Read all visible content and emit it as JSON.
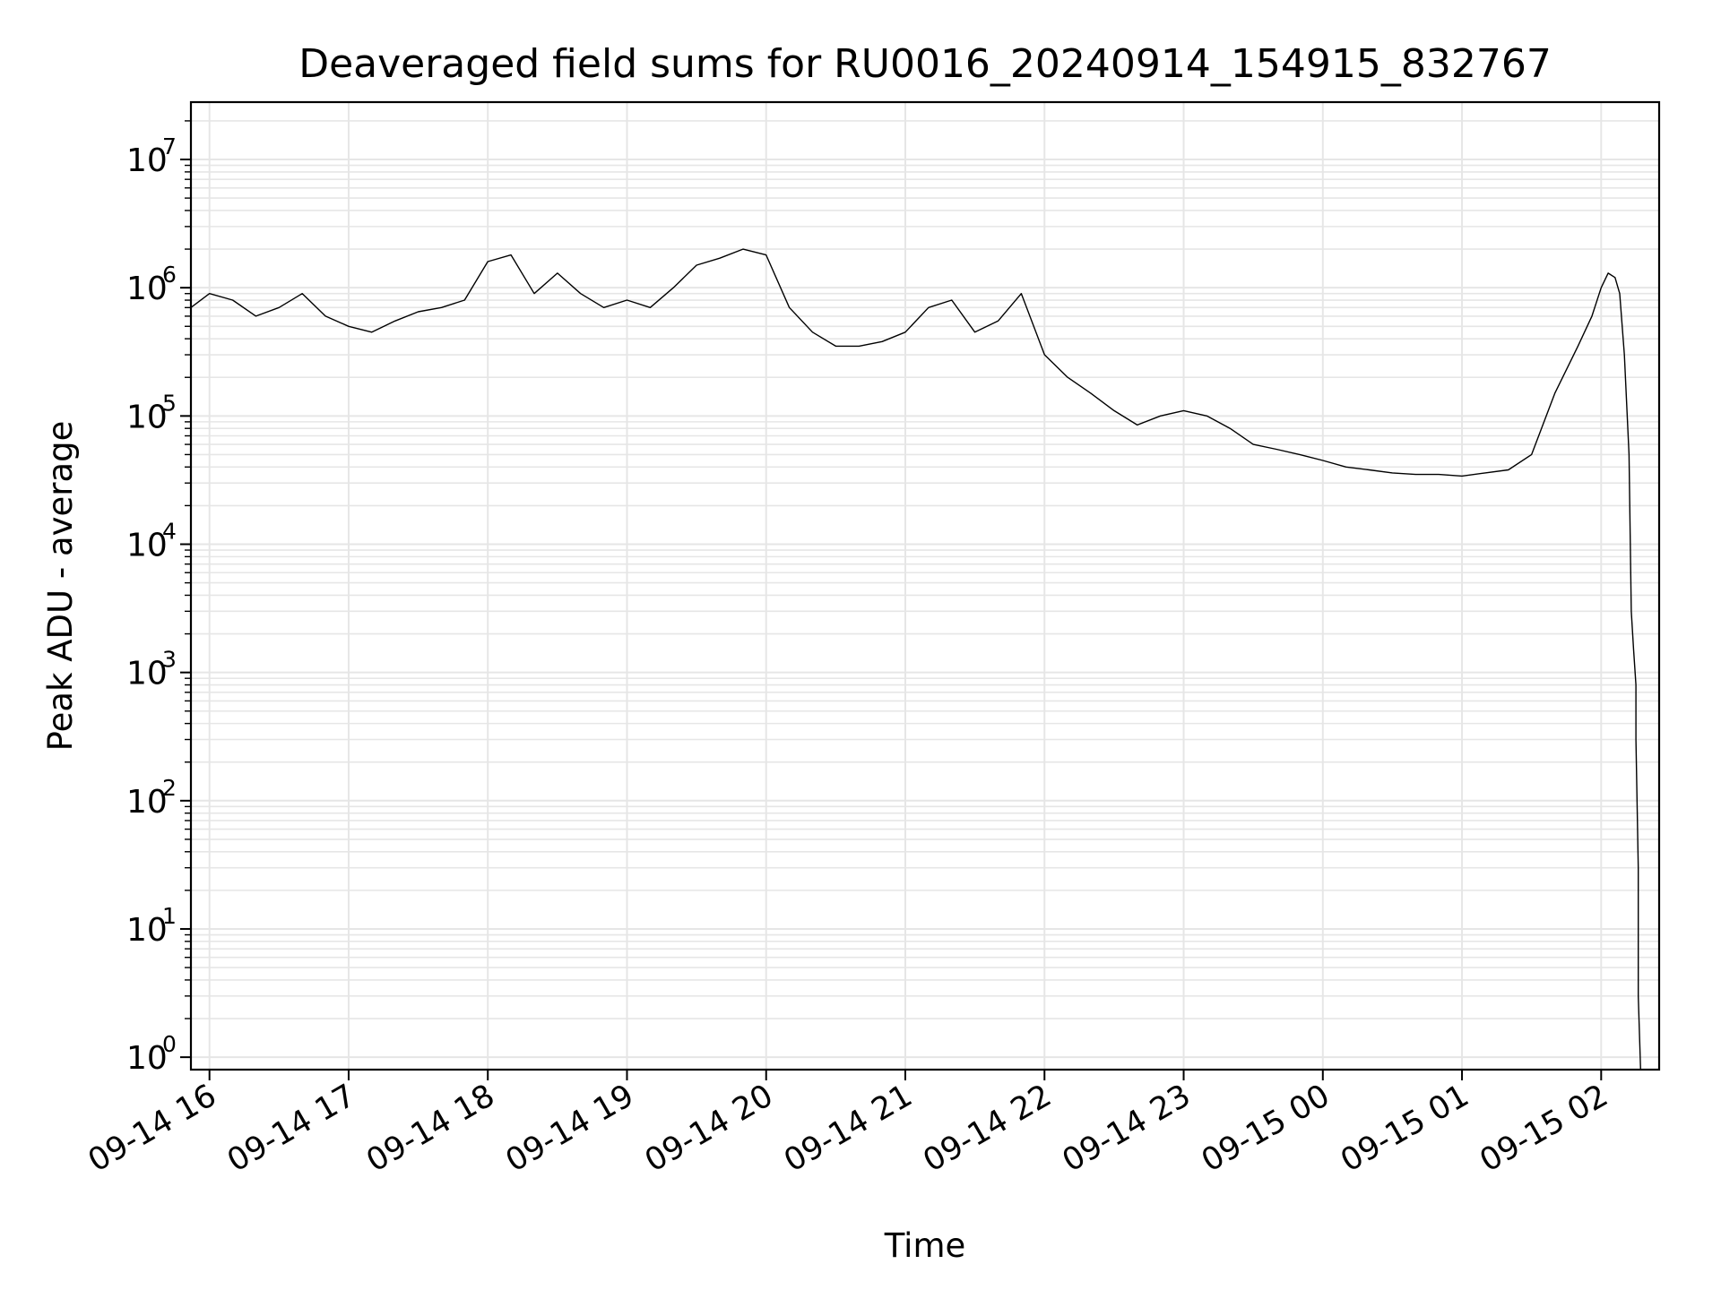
{
  "chart_data": {
    "type": "line",
    "title": "Deaveraged field sums for RU0016_20240914_154915_832767",
    "xlabel": "Time",
    "ylabel": "Peak ADU - average",
    "yscale": "log",
    "ylim": [
      0.8,
      28000000
    ],
    "xlim": [
      "2024-09-14 15:52",
      "2024-09-15 02:25"
    ],
    "grid": true,
    "line_color": "#000000",
    "grid_color": "#e6e6e6",
    "x_ticks": [
      "09-14 16",
      "09-14 17",
      "09-14 18",
      "09-14 19",
      "09-14 20",
      "09-14 21",
      "09-14 22",
      "09-14 23",
      "09-15 00",
      "09-15 01",
      "09-15 02"
    ],
    "x_tick_values": [
      "2024-09-14 16:00",
      "2024-09-14 17:00",
      "2024-09-14 18:00",
      "2024-09-14 19:00",
      "2024-09-14 20:00",
      "2024-09-14 21:00",
      "2024-09-14 22:00",
      "2024-09-14 23:00",
      "2024-09-15 00:00",
      "2024-09-15 01:00",
      "2024-09-15 02:00"
    ],
    "y_ticks": [
      {
        "base": "10",
        "exp": "0",
        "value": 1
      },
      {
        "base": "10",
        "exp": "1",
        "value": 10
      },
      {
        "base": "10",
        "exp": "2",
        "value": 100
      },
      {
        "base": "10",
        "exp": "3",
        "value": 1000
      },
      {
        "base": "10",
        "exp": "4",
        "value": 10000
      },
      {
        "base": "10",
        "exp": "5",
        "value": 100000
      },
      {
        "base": "10",
        "exp": "6",
        "value": 1000000
      },
      {
        "base": "10",
        "exp": "7",
        "value": 10000000
      }
    ],
    "series": [
      {
        "x": [
          "2024-09-14 15:52",
          "2024-09-14 16:00",
          "2024-09-14 16:10",
          "2024-09-14 16:20",
          "2024-09-14 16:30",
          "2024-09-14 16:40",
          "2024-09-14 16:50",
          "2024-09-14 17:00",
          "2024-09-14 17:10",
          "2024-09-14 17:20",
          "2024-09-14 17:30",
          "2024-09-14 17:40",
          "2024-09-14 17:50",
          "2024-09-14 18:00",
          "2024-09-14 18:10",
          "2024-09-14 18:20",
          "2024-09-14 18:30",
          "2024-09-14 18:40",
          "2024-09-14 18:50",
          "2024-09-14 19:00",
          "2024-09-14 19:10",
          "2024-09-14 19:20",
          "2024-09-14 19:30",
          "2024-09-14 19:40",
          "2024-09-14 19:50",
          "2024-09-14 20:00",
          "2024-09-14 20:10",
          "2024-09-14 20:20",
          "2024-09-14 20:30",
          "2024-09-14 20:40",
          "2024-09-14 20:50",
          "2024-09-14 21:00",
          "2024-09-14 21:10",
          "2024-09-14 21:20",
          "2024-09-14 21:30",
          "2024-09-14 21:40",
          "2024-09-14 21:50",
          "2024-09-14 22:00",
          "2024-09-14 22:10",
          "2024-09-14 22:20",
          "2024-09-14 22:30",
          "2024-09-14 22:40",
          "2024-09-14 22:50",
          "2024-09-14 23:00",
          "2024-09-14 23:10",
          "2024-09-14 23:20",
          "2024-09-14 23:30",
          "2024-09-14 23:40",
          "2024-09-14 23:50",
          "2024-09-15 00:00",
          "2024-09-15 00:10",
          "2024-09-15 00:20",
          "2024-09-15 00:30",
          "2024-09-15 00:40",
          "2024-09-15 00:50",
          "2024-09-15 01:00",
          "2024-09-15 01:10",
          "2024-09-15 01:20",
          "2024-09-15 01:30",
          "2024-09-15 01:40",
          "2024-09-15 01:50",
          "2024-09-15 01:56",
          "2024-09-15 02:00",
          "2024-09-15 02:03",
          "2024-09-15 02:06",
          "2024-09-15 02:08",
          "2024-09-15 02:10",
          "2024-09-15 02:12",
          "2024-09-15 02:13",
          "2024-09-15 02:14",
          "2024-09-15 02:15",
          "2024-09-15 02:15",
          "2024-09-15 02:16",
          "2024-09-15 02:16",
          "2024-09-15 02:17"
        ],
        "y": [
          700000,
          900000,
          800000,
          600000,
          700000,
          900000,
          600000,
          500000,
          450000,
          550000,
          650000,
          700000,
          800000,
          1600000,
          1800000,
          900000,
          1300000,
          900000,
          700000,
          800000,
          700000,
          1000000,
          1500000,
          1700000,
          2000000,
          1800000,
          700000,
          450000,
          350000,
          350000,
          380000,
          450000,
          700000,
          800000,
          450000,
          550000,
          900000,
          300000,
          200000,
          150000,
          110000,
          85000,
          100000,
          110000,
          100000,
          80000,
          60000,
          55000,
          50000,
          45000,
          40000,
          38000,
          36000,
          35000,
          35000,
          34000,
          36000,
          38000,
          50000,
          150000,
          350000,
          600000,
          1000000,
          1300000,
          1200000,
          900000,
          300000,
          50000,
          3000,
          1500,
          800,
          300,
          30,
          3,
          0.8
        ]
      }
    ]
  }
}
